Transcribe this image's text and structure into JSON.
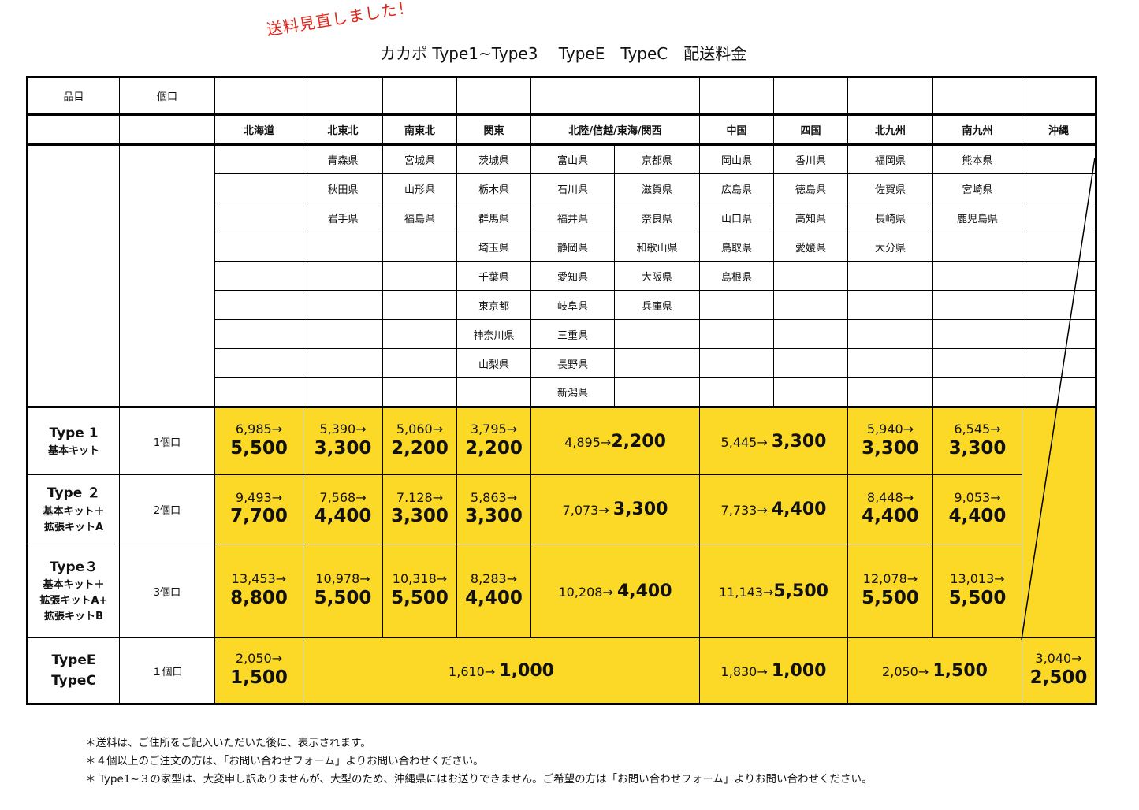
{
  "notice": "送料見直しました！",
  "title": "カカポ Type1~Type3　 TypeE　TypeC　配送料金",
  "header": {
    "item": "品目",
    "qty": "個口",
    "regions": [
      "北海道",
      "北東北",
      "南東北",
      "関東",
      "北陸/信越/東海/関西",
      "中国",
      "四国",
      "北九州",
      "南九州",
      "沖縄"
    ]
  },
  "prefectures": [
    [
      "",
      "青森県",
      "宮城県",
      "茨城県",
      "富山県",
      "京都県",
      "岡山県",
      "香川県",
      "福岡県",
      "熊本県",
      ""
    ],
    [
      "",
      "秋田県",
      "山形県",
      "栃木県",
      "石川県",
      "滋賀県",
      "広島県",
      "徳島県",
      "佐賀県",
      "宮崎県",
      ""
    ],
    [
      "",
      "岩手県",
      "福島県",
      "群馬県",
      "福井県",
      "奈良県",
      "山口県",
      "高知県",
      "長崎県",
      "鹿児島県",
      ""
    ],
    [
      "",
      "",
      "",
      "埼玉県",
      "静岡県",
      "和歌山県",
      "鳥取県",
      "愛媛県",
      "大分県",
      "",
      ""
    ],
    [
      "",
      "",
      "",
      "千葉県",
      "愛知県",
      "大阪県",
      "島根県",
      "",
      "",
      "",
      ""
    ],
    [
      "",
      "",
      "",
      "東京都",
      "岐阜県",
      "兵庫県",
      "",
      "",
      "",
      "",
      ""
    ],
    [
      "",
      "",
      "",
      "神奈川県",
      "三重県",
      "",
      "",
      "",
      "",
      "",
      ""
    ],
    [
      "",
      "",
      "",
      "山梨県",
      "長野県",
      "",
      "",
      "",
      "",
      "",
      ""
    ],
    [
      "",
      "",
      "",
      "",
      "新潟県",
      "",
      "",
      "",
      "",
      "",
      ""
    ]
  ],
  "rows": [
    {
      "label_main": "Type 1",
      "label_lines": [
        "基本キット"
      ],
      "qty": "1個口",
      "hokkaido": {
        "old": "6,985→",
        "new": "5,500"
      },
      "kitatohoku": {
        "old": "5,390→",
        "new": "3,300"
      },
      "minamitohoku": {
        "old": "5,060→",
        "new": "2,200"
      },
      "kanto": {
        "old": "3,795→",
        "new": "2,200"
      },
      "hokuriku": {
        "old": "4,895→",
        "new": "2,200"
      },
      "chugoku_shikoku": {
        "old": "5,445→ ",
        "new": "3,300"
      },
      "kitakyushu": {
        "old": "5,940→",
        "new": "3,300"
      },
      "minamikyushu": {
        "old": "6,545→",
        "new": "3,300"
      }
    },
    {
      "label_main": "Type ２",
      "label_lines": [
        "基本キット＋",
        "拡張キットA"
      ],
      "qty": "2個口",
      "hokkaido": {
        "old": "9,493→",
        "new": "7,700"
      },
      "kitatohoku": {
        "old": "7,568→",
        "new": "4,400"
      },
      "minamitohoku": {
        "old": "7.128→",
        "new": "3,300"
      },
      "kanto": {
        "old": "5,863→",
        "new": "3,300"
      },
      "hokuriku": {
        "old": "7,073→ ",
        "new": "3,300"
      },
      "chugoku_shikoku": {
        "old": "7,733→ ",
        "new": "4,400"
      },
      "kitakyushu": {
        "old": "8,448→",
        "new": "4,400"
      },
      "minamikyushu": {
        "old": "9,053→",
        "new": "4,400"
      }
    },
    {
      "label_main": "Type３",
      "label_lines": [
        "基本キット＋",
        "拡張キットA+",
        "拡張キットB"
      ],
      "qty": "3個口",
      "hokkaido": {
        "old": "13,453→",
        "new": "8,800"
      },
      "kitatohoku": {
        "old": "10,978→",
        "new": "5,500"
      },
      "minamitohoku": {
        "old": "10,318→",
        "new": "5,500"
      },
      "kanto": {
        "old": "8,283→",
        "new": "4,400"
      },
      "hokuriku": {
        "old": "10,208→ ",
        "new": "4,400"
      },
      "chugoku_shikoku": {
        "old": "11,143→",
        "new": "5,500"
      },
      "kitakyushu": {
        "old": "12,078→",
        "new": "5,500"
      },
      "minamikyushu": {
        "old": "13,013→",
        "new": "5,500"
      }
    }
  ],
  "type_ec": {
    "label_lines": [
      "TypeE",
      "TypeC"
    ],
    "qty": "１個口",
    "hokkaido": {
      "old": "2,050→",
      "new": "1,500"
    },
    "honshu": {
      "old": "1,610→ ",
      "new": "1,000"
    },
    "chugoku_shikoku": {
      "old": "1,830→ ",
      "new": "1,000"
    },
    "kyushu": {
      "old": "2,050→ ",
      "new": "1,500"
    },
    "okinawa": {
      "old": "3,040→",
      "new": "2,500"
    }
  },
  "notes": [
    "＊送料は、ご住所をご記入いただいた後に、表示されます。",
    "＊４個以上のご注文の方は、「お問い合わせフォーム」よりお問い合わせください。",
    "＊ Type1~３の家型は、大変申し訳ありませんが、大型のため、沖縄県にはお送りできません。ご希望の方は「お問い合わせフォーム」よりお問い合わせください。"
  ]
}
